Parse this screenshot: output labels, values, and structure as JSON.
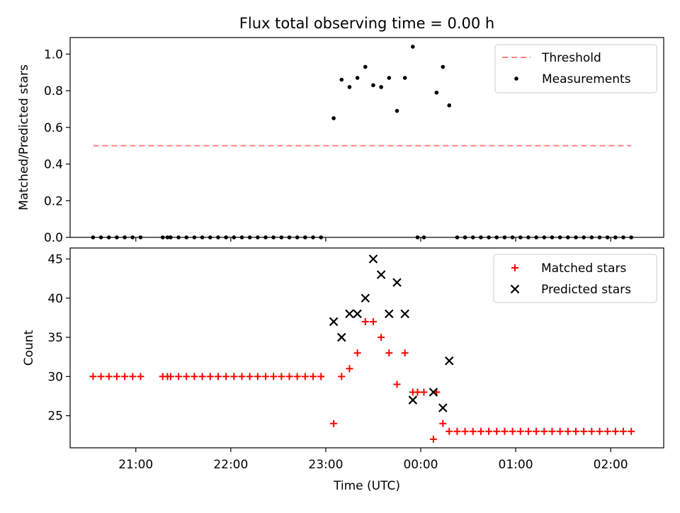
{
  "chart_data": [
    {
      "type": "scatter",
      "title": "Flux total observing time = 0.00 h",
      "xlabel": "",
      "ylabel": "Matched/Predicted stars",
      "ylim": [
        0,
        1.09
      ],
      "yticks": [
        "0.0",
        "0.2",
        "0.4",
        "0.6",
        "0.8",
        "1.0"
      ],
      "xtick_labels": [
        "21:00",
        "22:00",
        "23:00",
        "00:00",
        "01:00",
        "02:00"
      ],
      "legend": {
        "position": "top-right",
        "entries": [
          "Threshold",
          "Measurements"
        ]
      },
      "threshold": {
        "name": "Threshold",
        "value": 0.5,
        "x_start": "20:33",
        "x_end": "02:13",
        "color": "#ff8080"
      },
      "series": [
        {
          "name": "Measurements",
          "color": "#000000",
          "points": [
            [
              "20:33",
              0
            ],
            [
              "20:38",
              0
            ],
            [
              "20:43",
              0
            ],
            [
              "20:48",
              0
            ],
            [
              "20:53",
              0
            ],
            [
              "20:58",
              0
            ],
            [
              "21:03",
              0
            ],
            [
              "21:17",
              0
            ],
            [
              "21:20",
              0
            ],
            [
              "21:22",
              0
            ],
            [
              "21:27",
              0
            ],
            [
              "21:32",
              0
            ],
            [
              "21:37",
              0
            ],
            [
              "21:42",
              0
            ],
            [
              "21:47",
              0
            ],
            [
              "21:52",
              0
            ],
            [
              "21:57",
              0
            ],
            [
              "22:02",
              0
            ],
            [
              "22:07",
              0
            ],
            [
              "22:12",
              0
            ],
            [
              "22:17",
              0
            ],
            [
              "22:22",
              0
            ],
            [
              "22:27",
              0
            ],
            [
              "22:32",
              0
            ],
            [
              "22:37",
              0
            ],
            [
              "22:42",
              0
            ],
            [
              "22:47",
              0
            ],
            [
              "22:52",
              0
            ],
            [
              "22:57",
              0
            ],
            [
              "23:05",
              0.65
            ],
            [
              "23:10",
              0.86
            ],
            [
              "23:15",
              0.82
            ],
            [
              "23:20",
              0.87
            ],
            [
              "23:25",
              0.93
            ],
            [
              "23:30",
              0.83
            ],
            [
              "23:35",
              0.82
            ],
            [
              "23:40",
              0.87
            ],
            [
              "23:45",
              0.69
            ],
            [
              "23:50",
              0.87
            ],
            [
              "23:55",
              1.04
            ],
            [
              "00:10",
              0.79
            ],
            [
              "00:14",
              0.93
            ],
            [
              "00:18",
              0.72
            ],
            [
              "23:58",
              0
            ],
            [
              "00:02",
              0
            ],
            [
              "00:23",
              0
            ],
            [
              "00:28",
              0
            ],
            [
              "00:33",
              0
            ],
            [
              "00:38",
              0
            ],
            [
              "00:43",
              0
            ],
            [
              "00:48",
              0
            ],
            [
              "00:53",
              0
            ],
            [
              "00:58",
              0
            ],
            [
              "01:03",
              0
            ],
            [
              "01:08",
              0
            ],
            [
              "01:13",
              0
            ],
            [
              "01:18",
              0
            ],
            [
              "01:23",
              0
            ],
            [
              "01:28",
              0
            ],
            [
              "01:33",
              0
            ],
            [
              "01:38",
              0
            ],
            [
              "01:43",
              0
            ],
            [
              "01:48",
              0
            ],
            [
              "01:53",
              0
            ],
            [
              "01:58",
              0
            ],
            [
              "02:03",
              0
            ],
            [
              "02:08",
              0
            ],
            [
              "02:13",
              0
            ]
          ]
        }
      ]
    },
    {
      "type": "scatter",
      "title": "",
      "xlabel": "Time (UTC)",
      "ylabel": "Count",
      "ylim": [
        20.9,
        46.4
      ],
      "yticks": [
        "25",
        "30",
        "35",
        "40",
        "45"
      ],
      "xtick_labels": [
        "21:00",
        "22:00",
        "23:00",
        "00:00",
        "01:00",
        "02:00"
      ],
      "legend": {
        "position": "top-right",
        "entries": [
          "Matched stars",
          "Predicted stars"
        ]
      },
      "series": [
        {
          "name": "Matched stars",
          "color": "#ff0000",
          "marker": "plus",
          "points": [
            [
              "20:33",
              30
            ],
            [
              "20:38",
              30
            ],
            [
              "20:43",
              30
            ],
            [
              "20:48",
              30
            ],
            [
              "20:53",
              30
            ],
            [
              "20:58",
              30
            ],
            [
              "21:03",
              30
            ],
            [
              "21:17",
              30
            ],
            [
              "21:20",
              30
            ],
            [
              "21:22",
              30
            ],
            [
              "21:27",
              30
            ],
            [
              "21:32",
              30
            ],
            [
              "21:37",
              30
            ],
            [
              "21:42",
              30
            ],
            [
              "21:47",
              30
            ],
            [
              "21:52",
              30
            ],
            [
              "21:57",
              30
            ],
            [
              "22:02",
              30
            ],
            [
              "22:07",
              30
            ],
            [
              "22:12",
              30
            ],
            [
              "22:17",
              30
            ],
            [
              "22:22",
              30
            ],
            [
              "22:27",
              30
            ],
            [
              "22:32",
              30
            ],
            [
              "22:37",
              30
            ],
            [
              "22:42",
              30
            ],
            [
              "22:47",
              30
            ],
            [
              "22:52",
              30
            ],
            [
              "22:57",
              30
            ],
            [
              "23:05",
              24
            ],
            [
              "23:10",
              30
            ],
            [
              "23:15",
              31
            ],
            [
              "23:20",
              33
            ],
            [
              "23:25",
              37
            ],
            [
              "23:30",
              37
            ],
            [
              "23:35",
              35
            ],
            [
              "23:40",
              33
            ],
            [
              "23:45",
              29
            ],
            [
              "23:50",
              33
            ],
            [
              "23:55",
              28
            ],
            [
              "23:58",
              28
            ],
            [
              "00:02",
              28
            ],
            [
              "00:08",
              22
            ],
            [
              "00:10",
              28
            ],
            [
              "00:14",
              24
            ],
            [
              "00:18",
              23
            ],
            [
              "00:23",
              23
            ],
            [
              "00:28",
              23
            ],
            [
              "00:33",
              23
            ],
            [
              "00:38",
              23
            ],
            [
              "00:43",
              23
            ],
            [
              "00:48",
              23
            ],
            [
              "00:53",
              23
            ],
            [
              "00:58",
              23
            ],
            [
              "01:03",
              23
            ],
            [
              "01:08",
              23
            ],
            [
              "01:13",
              23
            ],
            [
              "01:18",
              23
            ],
            [
              "01:23",
              23
            ],
            [
              "01:28",
              23
            ],
            [
              "01:33",
              23
            ],
            [
              "01:38",
              23
            ],
            [
              "01:43",
              23
            ],
            [
              "01:48",
              23
            ],
            [
              "01:53",
              23
            ],
            [
              "01:58",
              23
            ],
            [
              "02:03",
              23
            ],
            [
              "02:08",
              23
            ],
            [
              "02:13",
              23
            ]
          ]
        },
        {
          "name": "Predicted stars",
          "color": "#000000",
          "marker": "x",
          "points": [
            [
              "23:05",
              37
            ],
            [
              "23:10",
              35
            ],
            [
              "23:15",
              38
            ],
            [
              "23:20",
              38
            ],
            [
              "23:25",
              40
            ],
            [
              "23:30",
              45
            ],
            [
              "23:35",
              43
            ],
            [
              "23:40",
              38
            ],
            [
              "23:45",
              42
            ],
            [
              "23:50",
              38
            ],
            [
              "23:55",
              27
            ],
            [
              "00:08",
              28
            ],
            [
              "00:14",
              26
            ],
            [
              "00:18",
              32
            ]
          ]
        }
      ]
    }
  ]
}
